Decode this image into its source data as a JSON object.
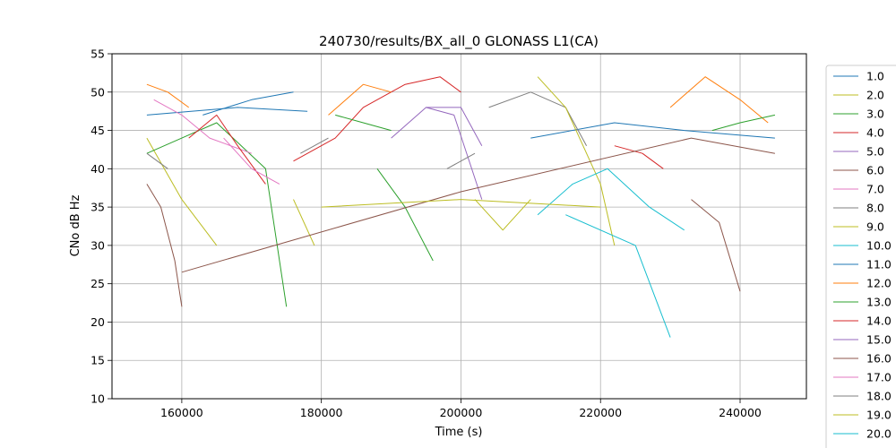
{
  "chart_data": {
    "type": "line",
    "title": "240730/results/BX_all_0 GLONASS L1(CA)",
    "xlabel": "Time (s)",
    "ylabel": "CNo dB Hz",
    "xlim": [
      150000,
      249500
    ],
    "ylim": [
      10,
      55
    ],
    "xticks": [
      160000,
      180000,
      200000,
      220000,
      240000
    ],
    "yticks": [
      10,
      15,
      20,
      25,
      30,
      35,
      40,
      45,
      50,
      55
    ],
    "grid": true,
    "legend_position": "right",
    "series": [
      {
        "name": "1.0",
        "color": "#1f77b4",
        "segments": [
          [
            [
              155000,
              47
            ],
            [
              168000,
              48
            ],
            [
              178000,
              47.5
            ]
          ],
          [
            [
              210000,
              44
            ],
            [
              222000,
              46
            ],
            [
              232000,
              45
            ],
            [
              245000,
              44
            ]
          ]
        ]
      },
      {
        "name": "2.0",
        "color": "#bcbd22",
        "segments": [
          [
            [
              155000,
              44
            ],
            [
              160000,
              36
            ],
            [
              165000,
              30
            ]
          ],
          [
            [
              202000,
              36
            ],
            [
              206000,
              32
            ],
            [
              210000,
              36
            ]
          ]
        ]
      },
      {
        "name": "3.0",
        "color": "#2ca02c",
        "segments": [
          [
            [
              155000,
              42
            ],
            [
              160000,
              44
            ],
            [
              165000,
              46
            ],
            [
              172000,
              40
            ],
            [
              175000,
              22
            ]
          ],
          [
            [
              188000,
              40
            ],
            [
              192000,
              35
            ],
            [
              196000,
              28
            ]
          ]
        ]
      },
      {
        "name": "4.0",
        "color": "#d62728",
        "segments": [
          [
            [
              176000,
              41
            ],
            [
              182000,
              44
            ],
            [
              186000,
              48
            ],
            [
              192000,
              51
            ],
            [
              197000,
              52
            ],
            [
              200000,
              50
            ]
          ]
        ]
      },
      {
        "name": "5.0",
        "color": "#9467bd",
        "segments": [
          [
            [
              190000,
              44
            ],
            [
              195000,
              48
            ],
            [
              199000,
              47
            ],
            [
              203000,
              36
            ]
          ]
        ]
      },
      {
        "name": "6.0",
        "color": "#8c564b",
        "segments": [
          [
            [
              155000,
              38
            ],
            [
              157000,
              35
            ],
            [
              159000,
              28
            ],
            [
              160000,
              22
            ]
          ],
          [
            [
              233000,
              36
            ],
            [
              237000,
              33
            ],
            [
              240000,
              24
            ]
          ]
        ]
      },
      {
        "name": "7.0",
        "color": "#e377c2",
        "segments": [
          [
            [
              156000,
              49
            ],
            [
              160000,
              47
            ],
            [
              164000,
              44
            ],
            [
              170000,
              42
            ]
          ]
        ]
      },
      {
        "name": "8.0",
        "color": "#7f7f7f",
        "segments": [
          [
            [
              204000,
              48
            ],
            [
              210000,
              50
            ],
            [
              215000,
              48
            ],
            [
              218000,
              43
            ]
          ]
        ]
      },
      {
        "name": "9.0",
        "color": "#bcbd22",
        "segments": [
          [
            [
              176000,
              36
            ],
            [
              179000,
              30
            ]
          ],
          [
            [
              211000,
              52
            ],
            [
              215000,
              48
            ],
            [
              220000,
              38
            ],
            [
              222000,
              30
            ]
          ]
        ]
      },
      {
        "name": "10.0",
        "color": "#17becf",
        "segments": [
          [
            [
              211000,
              34
            ],
            [
              216000,
              38
            ],
            [
              221000,
              40
            ],
            [
              227000,
              35
            ],
            [
              232000,
              32
            ]
          ]
        ]
      },
      {
        "name": "11.0",
        "color": "#1f77b4",
        "segments": [
          [
            [
              163000,
              47
            ],
            [
              170000,
              49
            ],
            [
              176000,
              50
            ]
          ]
        ]
      },
      {
        "name": "12.0",
        "color": "#ff7f0e",
        "segments": [
          [
            [
              155000,
              51
            ],
            [
              158000,
              50
            ],
            [
              161000,
              48
            ]
          ],
          [
            [
              181000,
              47
            ],
            [
              186000,
              51
            ],
            [
              190000,
              50
            ]
          ],
          [
            [
              230000,
              48
            ],
            [
              235000,
              52
            ],
            [
              240000,
              49
            ],
            [
              244000,
              46
            ]
          ]
        ]
      },
      {
        "name": "13.0",
        "color": "#2ca02c",
        "segments": [
          [
            [
              182000,
              47
            ],
            [
              186000,
              46
            ],
            [
              190000,
              45
            ]
          ],
          [
            [
              236000,
              45
            ],
            [
              240000,
              46
            ],
            [
              245000,
              47
            ]
          ]
        ]
      },
      {
        "name": "14.0",
        "color": "#d62728",
        "segments": [
          [
            [
              161000,
              44
            ],
            [
              165000,
              47
            ],
            [
              168000,
              43
            ],
            [
              172000,
              38
            ]
          ],
          [
            [
              222000,
              43
            ],
            [
              226000,
              42
            ],
            [
              229000,
              40
            ]
          ]
        ]
      },
      {
        "name": "15.0",
        "color": "#9467bd",
        "segments": [
          [
            [
              195000,
              48
            ],
            [
              200000,
              48
            ],
            [
              203000,
              43
            ]
          ]
        ]
      },
      {
        "name": "16.0",
        "color": "#8c564b",
        "segments": [
          [
            [
              160000,
              26.5
            ],
            [
              200000,
              37
            ],
            [
              233000,
              44
            ],
            [
              245000,
              42
            ]
          ]
        ]
      },
      {
        "name": "17.0",
        "color": "#e377c2",
        "segments": [
          [
            [
              166000,
              44
            ],
            [
              170000,
              40
            ],
            [
              174000,
              38
            ]
          ]
        ]
      },
      {
        "name": "18.0",
        "color": "#7f7f7f",
        "segments": [
          [
            [
              155000,
              42
            ],
            [
              158000,
              40
            ]
          ],
          [
            [
              177000,
              42
            ],
            [
              181000,
              44
            ]
          ],
          [
            [
              198000,
              40
            ],
            [
              202000,
              42
            ]
          ]
        ]
      },
      {
        "name": "19.0",
        "color": "#bcbd22",
        "segments": [
          [
            [
              180000,
              35
            ],
            [
              200000,
              36
            ],
            [
              220000,
              35
            ]
          ]
        ]
      },
      {
        "name": "20.0",
        "color": "#17becf",
        "segments": [
          [
            [
              215000,
              34
            ],
            [
              225000,
              30
            ],
            [
              230000,
              18
            ]
          ]
        ]
      }
    ]
  }
}
